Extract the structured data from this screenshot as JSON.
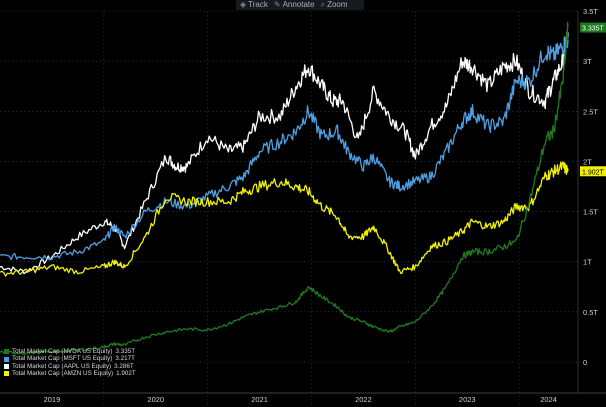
{
  "toolbar": {
    "items": [
      {
        "label": "Track",
        "icon": "track-icon"
      },
      {
        "label": "Annotate",
        "icon": "annotate-icon"
      },
      {
        "label": "Zoom",
        "icon": "zoom-icon"
      }
    ]
  },
  "colors": {
    "background": "#000000",
    "grid": "#2a3b52",
    "axis_text": "#cfcfcf",
    "nvda": "#1f7a1f",
    "msft": "#4f9fe0",
    "aapl": "#ffffff",
    "amzn": "#f2f200"
  },
  "legend": [
    {
      "label": "Total Market Cap (NVDA US Equity)",
      "value": "3.335T",
      "color": "#1f7a1f"
    },
    {
      "label": "Total Market Cap (MSFT US Equity)",
      "value": "3.217T",
      "color": "#4f9fe0"
    },
    {
      "label": "Total Market Cap (AAPL US Equity)",
      "value": "3.286T",
      "color": "#ffffff"
    },
    {
      "label": "Total Market Cap (AMZN US Equity)",
      "value": "1.902T",
      "color": "#f2f200"
    }
  ],
  "chart_data": {
    "type": "line",
    "ylim": [
      0,
      3.5
    ],
    "y_ticks": [
      "0",
      "0.5T",
      "1T",
      "1.5T",
      "2T",
      "2.5T",
      "3T",
      "3.5T"
    ],
    "y_tick_values": [
      0,
      0.5,
      1,
      1.5,
      2,
      2.5,
      3,
      3.5
    ],
    "x_tick_labels": [
      "2019",
      "2020",
      "2021",
      "2022",
      "2023",
      "2024"
    ],
    "x_tick_years": [
      2019,
      2020,
      2021,
      2022,
      2023,
      2024
    ],
    "xlim": [
      2019.0,
      2024.47
    ],
    "grid": true,
    "legend_position": "bottom-left",
    "last_value_labels": [
      {
        "text": "3.335T",
        "value": 3.335,
        "color": "#1f7a1f"
      },
      {
        "text": "1.902T",
        "value": 1.902,
        "color": "#f2f200"
      }
    ],
    "series": [
      {
        "name": "Total Market Cap (AAPL US Equity)",
        "color": "#ffffff",
        "x": [
          2019.0,
          2019.25,
          2019.5,
          2019.75,
          2020.0,
          2020.1,
          2020.2,
          2020.4,
          2020.6,
          2020.7,
          2020.8,
          2021.0,
          2021.2,
          2021.35,
          2021.5,
          2021.7,
          2021.85,
          2021.97,
          2022.1,
          2022.2,
          2022.3,
          2022.45,
          2022.6,
          2022.75,
          2022.9,
          2023.0,
          2023.15,
          2023.3,
          2023.45,
          2023.55,
          2023.7,
          2023.85,
          2023.97,
          2024.1,
          2024.25,
          2024.33,
          2024.42,
          2024.47
        ],
        "y": [
          0.95,
          0.9,
          1.05,
          1.25,
          1.4,
          1.35,
          1.15,
          1.6,
          2.05,
          1.95,
          1.95,
          2.25,
          2.1,
          2.15,
          2.45,
          2.45,
          2.75,
          2.95,
          2.75,
          2.6,
          2.6,
          2.2,
          2.7,
          2.45,
          2.3,
          2.05,
          2.35,
          2.55,
          3.0,
          2.95,
          2.75,
          2.95,
          3.0,
          2.7,
          2.6,
          2.8,
          3.0,
          3.286
        ]
      },
      {
        "name": "Total Market Cap (MSFT US Equity)",
        "color": "#4f9fe0",
        "x": [
          2019.0,
          2019.25,
          2019.5,
          2019.75,
          2020.0,
          2020.1,
          2020.2,
          2020.4,
          2020.6,
          2020.8,
          2021.0,
          2021.2,
          2021.35,
          2021.5,
          2021.7,
          2021.85,
          2021.97,
          2022.1,
          2022.25,
          2022.35,
          2022.5,
          2022.6,
          2022.75,
          2022.85,
          2023.0,
          2023.15,
          2023.3,
          2023.45,
          2023.55,
          2023.7,
          2023.85,
          2023.97,
          2024.1,
          2024.25,
          2024.33,
          2024.42,
          2024.47
        ],
        "y": [
          1.05,
          1.05,
          1.05,
          1.1,
          1.2,
          1.35,
          1.25,
          1.5,
          1.6,
          1.55,
          1.65,
          1.75,
          1.85,
          2.1,
          2.2,
          2.3,
          2.5,
          2.25,
          2.3,
          2.1,
          1.95,
          2.05,
          1.8,
          1.75,
          1.8,
          1.85,
          2.1,
          2.4,
          2.5,
          2.35,
          2.4,
          2.8,
          2.8,
          3.1,
          3.05,
          3.15,
          3.217
        ]
      },
      {
        "name": "Total Market Cap (AMZN US Equity)",
        "color": "#f2f200",
        "x": [
          2019.0,
          2019.25,
          2019.5,
          2019.75,
          2020.0,
          2020.1,
          2020.2,
          2020.4,
          2020.6,
          2020.8,
          2021.0,
          2021.2,
          2021.35,
          2021.5,
          2021.7,
          2021.85,
          2021.97,
          2022.1,
          2022.25,
          2022.35,
          2022.5,
          2022.6,
          2022.75,
          2022.85,
          2023.0,
          2023.15,
          2023.3,
          2023.45,
          2023.55,
          2023.7,
          2023.85,
          2023.97,
          2024.1,
          2024.25,
          2024.33,
          2024.42,
          2024.47
        ],
        "y": [
          0.88,
          0.9,
          0.95,
          0.9,
          0.95,
          1.0,
          0.95,
          1.25,
          1.65,
          1.6,
          1.6,
          1.6,
          1.7,
          1.75,
          1.8,
          1.75,
          1.7,
          1.55,
          1.45,
          1.25,
          1.25,
          1.35,
          1.1,
          0.9,
          0.95,
          1.15,
          1.2,
          1.3,
          1.4,
          1.35,
          1.4,
          1.55,
          1.55,
          1.85,
          1.9,
          1.95,
          1.902
        ]
      },
      {
        "name": "Total Market Cap (NVDA US Equity)",
        "color": "#1f7a1f",
        "x": [
          2019.0,
          2019.25,
          2019.5,
          2019.75,
          2020.0,
          2020.1,
          2020.2,
          2020.4,
          2020.6,
          2020.8,
          2021.0,
          2021.2,
          2021.35,
          2021.5,
          2021.7,
          2021.85,
          2021.97,
          2022.1,
          2022.25,
          2022.35,
          2022.5,
          2022.6,
          2022.75,
          2022.85,
          2023.0,
          2023.15,
          2023.3,
          2023.45,
          2023.55,
          2023.7,
          2023.85,
          2023.97,
          2024.1,
          2024.25,
          2024.33,
          2024.42,
          2024.47
        ],
        "y": [
          0.1,
          0.09,
          0.1,
          0.12,
          0.15,
          0.18,
          0.17,
          0.25,
          0.3,
          0.33,
          0.32,
          0.38,
          0.45,
          0.5,
          0.55,
          0.6,
          0.75,
          0.65,
          0.55,
          0.45,
          0.4,
          0.35,
          0.3,
          0.35,
          0.4,
          0.55,
          0.75,
          1.05,
          1.1,
          1.1,
          1.15,
          1.2,
          1.6,
          2.2,
          2.3,
          2.8,
          3.335
        ]
      }
    ]
  }
}
